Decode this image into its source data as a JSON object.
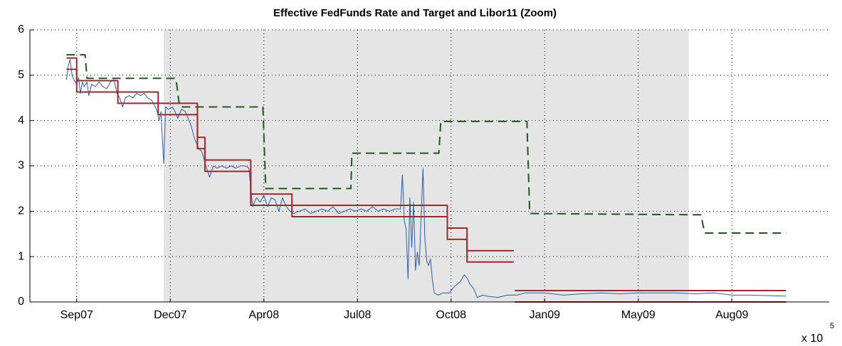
{
  "chart_data": {
    "type": "line",
    "title": "Effective FedFunds Rate and Target and Libor11 (Zoom)",
    "xlim": [
      733250,
      734104
    ],
    "ylim": [
      0,
      6
    ],
    "yticks": [
      0,
      1,
      2,
      3,
      4,
      5,
      6
    ],
    "xticks": [
      {
        "value": 733300,
        "label": "Sep07"
      },
      {
        "value": 733400,
        "label": "Dec07"
      },
      {
        "value": 733500,
        "label": "Apr08"
      },
      {
        "value": 733600,
        "label": "Jul08"
      },
      {
        "value": 733700,
        "label": "Oct08"
      },
      {
        "value": 733800,
        "label": "Jan09"
      },
      {
        "value": 733900,
        "label": "May09"
      },
      {
        "value": 734000,
        "label": "Aug09"
      }
    ],
    "x_multiplier": {
      "base": "x 10",
      "exponent": 5
    },
    "grid": true,
    "shaded_regions": [
      [
        733393,
        733954
      ]
    ],
    "shade_color": "#e5e5e5",
    "series": [
      {
        "color": "#2a5db0",
        "width": 1,
        "dashed": false,
        "x": [
          733289,
          733291,
          733293,
          733295,
          733297,
          733300,
          733302,
          733304,
          733306,
          733308,
          733311,
          733313,
          733316,
          733320,
          733324,
          733328,
          733332,
          733336,
          733340,
          733343,
          733346,
          733349,
          733352,
          733356,
          733360,
          733364,
          733368,
          733372,
          733376,
          733380,
          733384,
          733386,
          733388,
          733390,
          733393,
          733395,
          733398,
          733402,
          733405,
          733408,
          733412,
          733416,
          733422,
          733426,
          733430,
          733434,
          733438,
          733442,
          733446,
          733450,
          733455,
          733460,
          733465,
          733470,
          733475,
          733480,
          733484,
          733486,
          733488,
          733492,
          733496,
          733500,
          733504,
          733508,
          733512,
          733516,
          733520,
          733524,
          733528,
          733532,
          733538,
          733544,
          733550,
          733556,
          733562,
          733568,
          733574,
          733580,
          733586,
          733592,
          733598,
          733604,
          733610,
          733616,
          733622,
          733628,
          733634,
          733640,
          733646,
          733648,
          733650,
          733652,
          733654,
          733656,
          733658,
          733660,
          733662,
          733664,
          733666,
          733670,
          733672,
          733674,
          733676,
          733678,
          733680,
          733682,
          733686,
          733692,
          733698,
          733704,
          733710,
          733714,
          733718,
          733720,
          733724,
          733728,
          733734,
          733740,
          733750,
          733760,
          733770,
          733780,
          733800,
          733820,
          733840,
          733860,
          733880,
          733900,
          733920,
          733940,
          733960,
          733980,
          734000,
          734020,
          734040,
          734058
        ],
        "values": [
          4.9,
          5.2,
          5.35,
          5.0,
          4.9,
          4.8,
          4.95,
          4.6,
          4.85,
          4.75,
          4.85,
          4.55,
          4.8,
          4.75,
          4.85,
          4.75,
          4.7,
          4.85,
          4.9,
          4.6,
          4.5,
          4.3,
          4.5,
          4.55,
          4.5,
          4.6,
          4.55,
          4.6,
          4.5,
          4.45,
          4.3,
          4.2,
          4.0,
          4.2,
          3.05,
          4.3,
          4.25,
          4.3,
          4.2,
          4.05,
          4.25,
          4.2,
          3.9,
          3.6,
          3.4,
          3.3,
          3.0,
          2.75,
          3.0,
          2.95,
          3.0,
          2.95,
          3.0,
          2.95,
          3.0,
          3.0,
          2.95,
          2.5,
          2.1,
          2.3,
          2.2,
          2.35,
          2.1,
          2.3,
          2.25,
          2.0,
          2.3,
          2.1,
          2.0,
          1.95,
          2.0,
          2.05,
          1.95,
          2.0,
          2.05,
          2.0,
          2.1,
          1.95,
          2.0,
          2.05,
          2.0,
          2.05,
          2.0,
          2.1,
          2.0,
          2.05,
          2.0,
          2.05,
          2.05,
          2.8,
          1.8,
          1.6,
          0.5,
          2.3,
          1.2,
          2.2,
          0.7,
          1.1,
          0.8,
          2.95,
          1.4,
          0.9,
          0.8,
          0.95,
          0.5,
          0.2,
          0.15,
          0.2,
          0.2,
          0.35,
          0.45,
          0.6,
          0.5,
          0.4,
          0.3,
          0.1,
          0.15,
          0.12,
          0.1,
          0.15,
          0.15,
          0.2,
          0.2,
          0.15,
          0.18,
          0.2,
          0.18,
          0.2,
          0.2,
          0.2,
          0.18,
          0.2,
          0.15,
          0.15,
          0.14,
          0.13
        ]
      },
      {
        "color": "#a0282a",
        "width": 2,
        "dashed": false,
        "x": [
          733289,
          733300,
          733300,
          733344,
          733344,
          733387,
          733387,
          733429,
          733429,
          733437,
          733437,
          733486,
          733486,
          733530,
          733530,
          733696,
          733696,
          733717,
          733717,
          733767,
          733767,
          733768,
          734058
        ],
        "values": [
          5.38,
          5.38,
          4.88,
          4.88,
          4.63,
          4.63,
          4.38,
          4.38,
          3.63,
          3.63,
          3.13,
          3.13,
          2.38,
          2.38,
          2.13,
          2.13,
          1.63,
          1.63,
          1.13,
          1.13,
          null,
          0.25,
          0.25
        ]
      },
      {
        "color": "#a0282a",
        "width": 2,
        "dashed": false,
        "x": [
          733289,
          733300,
          733300,
          733344,
          733344,
          733387,
          733387,
          733429,
          733429,
          733437,
          733437,
          733486,
          733486,
          733530,
          733530,
          733696,
          733696,
          733717,
          733717,
          733767,
          733767,
          733768,
          734058
        ],
        "values": [
          5.13,
          5.13,
          4.63,
          4.63,
          4.38,
          4.38,
          4.13,
          4.13,
          3.38,
          3.38,
          2.88,
          2.88,
          2.13,
          2.13,
          1.88,
          1.88,
          1.38,
          1.38,
          0.88,
          0.88,
          null,
          0,
          0
        ]
      },
      {
        "color": "#1e5a1e",
        "width": 2,
        "dashed": true,
        "x": [
          733289,
          733309,
          733311,
          733406,
          733410,
          733499,
          733502,
          733593,
          733594,
          733687,
          733689,
          733781,
          733784,
          733967,
          733971,
          734058
        ],
        "values": [
          5.45,
          5.45,
          4.93,
          4.93,
          4.3,
          4.3,
          2.5,
          2.5,
          3.28,
          3.28,
          3.98,
          3.98,
          1.95,
          1.92,
          1.52,
          1.52
        ]
      }
    ]
  }
}
